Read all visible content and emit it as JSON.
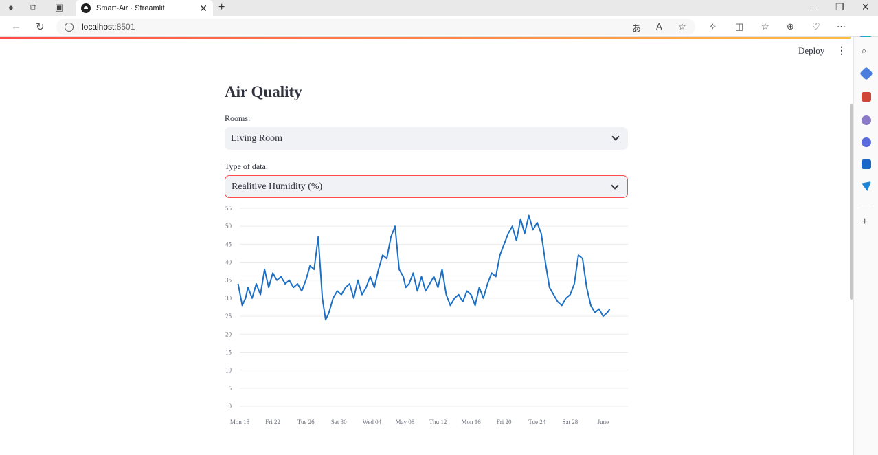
{
  "browser": {
    "tab_title": "Smart-Air · Streamlit",
    "new_tab": "+",
    "url_host": "localhost",
    "url_port": ":8501"
  },
  "app": {
    "deploy_label": "Deploy",
    "title": "Air Quality",
    "rooms_label": "Rooms:",
    "rooms_value": "Living Room",
    "type_label": "Type of data:",
    "type_value": "Realitive Humidity (%)",
    "accent_color": "#ff4b4b",
    "line_color": "#1d6fc4"
  },
  "chart_data": {
    "type": "line",
    "title": "",
    "ylim": [
      0,
      55
    ],
    "yticks": [
      0,
      5,
      10,
      15,
      20,
      25,
      30,
      35,
      40,
      45,
      50,
      55
    ],
    "xlim": [
      0,
      47
    ],
    "xticks": [
      "Mon 18",
      "Fri 22",
      "Tue 26",
      "Sat 30",
      "Wed 04",
      "May 08",
      "Thu 12",
      "Mon 16",
      "Fri 20",
      "Tue 24",
      "Sat 28",
      "June"
    ],
    "xtick_positions": [
      0,
      4,
      8,
      12,
      16,
      20,
      24,
      28,
      32,
      36,
      40,
      44
    ],
    "grid": true,
    "series": [
      {
        "x": [
          -0.2,
          0.3,
          0.7,
          1.0,
          1.5,
          2.0,
          2.5,
          3.0,
          3.5,
          4.0,
          4.5,
          5.0,
          5.5,
          6.0,
          6.5,
          7.0,
          7.5,
          8.0,
          8.5,
          9.0,
          9.5,
          10.0,
          10.4,
          10.8,
          11.3,
          11.8,
          12.3,
          12.8,
          13.3,
          13.8,
          14.3,
          14.8,
          15.3,
          15.8,
          16.3,
          16.8,
          17.3,
          17.8,
          18.3,
          18.8,
          19.3,
          19.8,
          20.1,
          20.5,
          21.0,
          21.5,
          22.0,
          22.5,
          23.0,
          23.5,
          24.0,
          24.5,
          25.0,
          25.5,
          26.0,
          26.5,
          27.0,
          27.5,
          28.0,
          28.5,
          29.0,
          29.5,
          30.0,
          30.5,
          31.0,
          31.5,
          32.0,
          32.5,
          33.0,
          33.5,
          34.0,
          34.5,
          35.0,
          35.5,
          36.0,
          36.5,
          37.0,
          37.5,
          38.0,
          38.5,
          39.0,
          39.5,
          40.0,
          40.5,
          41.0,
          41.5,
          42.0,
          42.5,
          43.0,
          43.5,
          44.0,
          44.5,
          44.8
        ],
        "y": [
          34,
          28,
          30,
          33,
          30,
          34,
          31,
          38,
          33,
          37,
          35,
          36,
          34,
          35,
          33,
          34,
          32,
          35,
          39,
          38,
          47,
          30,
          24,
          26,
          30,
          32,
          31,
          33,
          34,
          30,
          35,
          31,
          33,
          36,
          33,
          38,
          42,
          41,
          47,
          50,
          38,
          36,
          33,
          34,
          37,
          32,
          36,
          32,
          34,
          36,
          33,
          38,
          31,
          28,
          30,
          31,
          29,
          32,
          31,
          28,
          33,
          30,
          34,
          37,
          36,
          42,
          45,
          48,
          50,
          46,
          52,
          48,
          53,
          49,
          51,
          48,
          40,
          33,
          31,
          29,
          28,
          30,
          31,
          34,
          42,
          41,
          33,
          28,
          26,
          27,
          25,
          26,
          27
        ]
      }
    ]
  }
}
